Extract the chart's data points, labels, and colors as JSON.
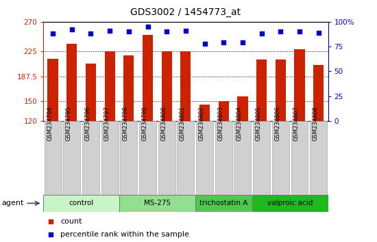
{
  "title": "GDS3002 / 1454773_at",
  "samples": [
    "GSM234794",
    "GSM234795",
    "GSM234796",
    "GSM234797",
    "GSM234798",
    "GSM234799",
    "GSM234800",
    "GSM234801",
    "GSM234802",
    "GSM234803",
    "GSM234804",
    "GSM234805",
    "GSM234806",
    "GSM234807",
    "GSM234808"
  ],
  "counts": [
    214,
    237,
    207,
    225,
    219,
    250,
    225,
    225,
    145,
    150,
    157,
    213,
    213,
    228,
    205
  ],
  "percentiles": [
    88,
    92,
    88,
    91,
    90,
    95,
    90,
    91,
    78,
    79,
    79,
    88,
    90,
    90,
    89
  ],
  "groups": [
    {
      "label": "control",
      "start": 0,
      "end": 3,
      "color": "#c8f5c8"
    },
    {
      "label": "MS-275",
      "start": 4,
      "end": 7,
      "color": "#90e090"
    },
    {
      "label": "trichostatin A",
      "start": 8,
      "end": 10,
      "color": "#50c850"
    },
    {
      "label": "valproic acid",
      "start": 11,
      "end": 14,
      "color": "#20b820"
    }
  ],
  "ymin": 120,
  "ymax": 270,
  "yticks": [
    120,
    150,
    187.5,
    225,
    270
  ],
  "ytick_labels": [
    "120",
    "150",
    "187.5",
    "225",
    "270"
  ],
  "right_yticks": [
    0,
    25,
    50,
    75,
    100
  ],
  "right_ytick_labels": [
    "0",
    "25",
    "50",
    "75",
    "100%"
  ],
  "bar_color": "#cc2200",
  "dot_color": "#0000cc",
  "bar_width": 0.55,
  "legend_count_color": "#cc2200",
  "legend_dot_color": "#0000cc",
  "grid_lines": [
    150,
    187.5,
    225
  ],
  "fig_width": 5.5,
  "fig_height": 3.54,
  "dpi": 100
}
